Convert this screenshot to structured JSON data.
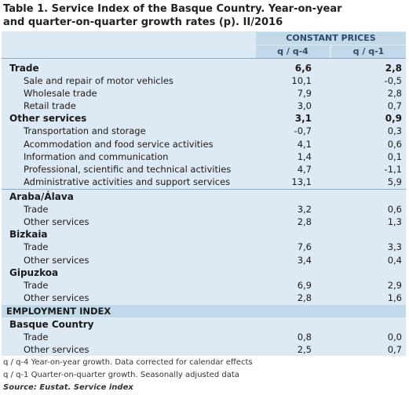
{
  "title_line1": "Table 1. Service Index of the Basque Country. Year-on-year",
  "title_line2": "and quarter-on-quarter growth rates (p).  II/2016",
  "header": {
    "group": "CONSTANT PRICES",
    "col1": "q / q-4",
    "col2": "q / q-1"
  },
  "service_rows": [
    {
      "label": "Trade",
      "v1": "6,6",
      "v2": "2,8",
      "bold": true
    },
    {
      "label": "Sale and repair of motor vehicles",
      "v1": "10,1",
      "v2": "-0,5",
      "bold": false
    },
    {
      "label": "Wholesale trade",
      "v1": "7,9",
      "v2": "2,8",
      "bold": false
    },
    {
      "label": "Retail trade",
      "v1": "3,0",
      "v2": "0,7",
      "bold": false
    },
    {
      "label": "Other services",
      "v1": "3,1",
      "v2": "0,9",
      "bold": true
    },
    {
      "label": "Transportation and storage",
      "v1": "-0,7",
      "v2": "0,3",
      "bold": false
    },
    {
      "label": "Acommodation and food service activities",
      "v1": "4,1",
      "v2": "0,6",
      "bold": false
    },
    {
      "label": "Information and communication",
      "v1": "1,4",
      "v2": "0,1",
      "bold": false
    },
    {
      "label": "Professional, scientific and technical activities",
      "v1": "4,7",
      "v2": "-1,1",
      "bold": false
    },
    {
      "label": "Administrative activities and support services",
      "v1": "13,1",
      "v2": "5,9",
      "bold": false
    }
  ],
  "territories": [
    {
      "name": "Araba/Álava",
      "rows": [
        {
          "label": "Trade",
          "v1": "3,2",
          "v2": "0,6"
        },
        {
          "label": "Other services",
          "v1": "2,8",
          "v2": "1,3"
        }
      ]
    },
    {
      "name": "Bizkaia",
      "rows": [
        {
          "label": "Trade",
          "v1": "7,6",
          "v2": "3,3"
        },
        {
          "label": "Other services",
          "v1": "3,4",
          "v2": "0,4"
        }
      ]
    },
    {
      "name": "Gipuzkoa",
      "rows": [
        {
          "label": "Trade",
          "v1": "6,9",
          "v2": "2,9"
        },
        {
          "label": "Other services",
          "v1": "2,8",
          "v2": "1,6"
        }
      ]
    }
  ],
  "employment": {
    "heading": "EMPLOYMENT INDEX",
    "region": "Basque Country",
    "rows": [
      {
        "label": "Trade",
        "v1": "0,8",
        "v2": "0,0"
      },
      {
        "label": "Other services",
        "v1": "2,5",
        "v2": "0,7"
      }
    ]
  },
  "notes": [
    "q / q-4 Year-on-year growth. Data corrected for calendar effects",
    "q / q-1 Quarter-on-quarter growth. Seasonally adjusted data"
  ],
  "source": "Source: Eustat. Service index"
}
